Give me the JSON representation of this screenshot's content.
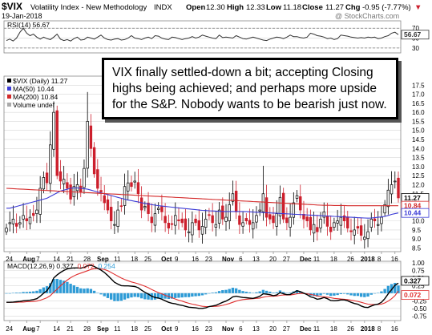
{
  "header": {
    "symbol": "$VIX",
    "name": "Volatility Index - New Methodology",
    "exchange": "INDX",
    "date": "19-Jan-2018",
    "watermark": "@ StockCharts.com",
    "ohlc": {
      "open_label": "Open",
      "open": "12.30",
      "high_label": "High",
      "high": "12.33",
      "low_label": "Low",
      "low": "11.18",
      "close_label": "Close",
      "close": "11.27",
      "chg_label": "Chg",
      "chg": "-0.95 (-7.77%)",
      "chg_arrow": "▼"
    }
  },
  "annotation": {
    "lines": [
      "VIX finally settled-down a bit; accepting Closing",
      "highs being achieved; and perhaps more upside",
      "for the S&P. Nobody wants to be bearish just now."
    ]
  },
  "colors": {
    "up": "#000000",
    "down": "#cc1f2c",
    "ma50": "#3b3bd6",
    "ma200": "#d42a2a",
    "rsi": "#333333",
    "macd": "#000000",
    "signal": "#e03030",
    "hist": "#2e9bd6",
    "grid": "#d8d8d8"
  },
  "legend": {
    "price": "$VIX (Daily) 11.27",
    "ma50": "MA(50) 10.44",
    "ma200": "MA(200) 10.84",
    "volume": "Volume undef"
  },
  "x_axis_labels": [
    "24",
    "Aug",
    "7",
    "14",
    "21",
    "28",
    "Sep",
    "11",
    "18",
    "25",
    "Oct",
    "9",
    "16",
    "23",
    "Nov",
    "6",
    "13",
    "20",
    "27",
    "Dec",
    "11",
    "18",
    "26",
    "2018",
    "8",
    "16"
  ],
  "chart_data": [
    {
      "type": "line",
      "panel": "RSI",
      "title": "RSI(14) 56.67",
      "yticks": [
        70,
        50,
        30
      ],
      "ylim": [
        20,
        85
      ],
      "overbought": 70,
      "oversold": 30,
      "last_value_label": "56.67",
      "values": [
        45,
        48,
        44,
        50,
        62,
        70,
        60,
        55,
        58,
        52,
        48,
        52,
        49,
        47,
        52,
        58,
        48,
        45,
        47,
        44,
        49,
        52,
        46,
        47,
        52,
        50,
        48,
        52,
        56,
        50,
        47,
        46,
        48,
        49,
        46,
        47,
        50,
        55,
        50,
        49,
        47,
        50,
        52,
        49,
        55,
        54,
        50,
        48,
        47,
        52,
        51,
        49,
        47,
        49,
        50,
        53,
        50,
        52,
        56,
        54,
        52,
        50,
        49,
        56,
        51,
        52,
        51,
        50,
        55,
        52,
        49,
        48,
        50,
        52,
        50,
        48,
        46,
        45,
        48,
        50,
        52,
        51,
        49,
        52,
        56,
        53,
        53,
        51,
        50,
        52,
        60,
        58,
        55,
        54,
        52,
        49,
        50,
        47,
        49,
        56,
        55,
        54,
        52,
        51,
        50,
        51,
        50,
        52,
        51,
        52,
        49,
        50,
        53,
        55,
        60,
        62,
        57
      ]
    },
    {
      "type": "candlestick",
      "panel": "Price",
      "title": "$VIX (Daily) 11.27",
      "yticks": [
        8.5,
        9.0,
        9.5,
        10.0,
        10.5,
        11.0,
        11.5,
        12.0,
        12.5,
        13.0,
        13.5,
        14.0,
        14.5,
        15.0,
        15.5,
        16.0,
        16.5,
        17.0,
        17.5
      ],
      "ylim": [
        8.3,
        18.0
      ],
      "last_labels": [
        {
          "text": "11.27",
          "value": 11.27,
          "color": "#000000"
        },
        {
          "text": "10.84",
          "value": 10.84,
          "color": "#d42a2a"
        },
        {
          "text": "10.44",
          "value": 10.44,
          "color": "#3b3bd6"
        }
      ],
      "close": [
        9.6,
        9.9,
        10.1,
        9.7,
        9.9,
        10.3,
        10.0,
        10.2,
        10.3,
        10.6,
        11.8,
        12.4,
        12.1,
        14.2,
        16.0,
        12.5,
        12.2,
        12.3,
        11.8,
        11.2,
        11.9,
        12.0,
        11.6,
        12.9,
        15.5,
        14.0,
        12.6,
        11.8,
        11.6,
        11.0,
        10.6,
        10.0,
        9.8,
        10.6,
        10.8,
        11.9,
        12.1,
        11.9,
        12.2,
        11.5,
        10.6,
        10.8,
        10.4,
        9.9,
        10.4,
        10.7,
        10.5,
        9.9,
        9.6,
        9.8,
        10.3,
        10.0,
        9.9,
        9.5,
        9.4,
        9.9,
        9.9,
        9.5,
        9.7,
        10.1,
        10.3,
        9.9,
        9.8,
        10.6,
        10.1,
        10.2,
        10.9,
        11.5,
        10.5,
        9.8,
        9.9,
        10.0,
        9.8,
        9.9,
        10.3,
        10.6,
        11.5,
        10.2,
        10.1,
        9.9,
        10.4,
        11.3,
        10.1,
        9.9,
        10.2,
        11.0,
        11.4,
        10.6,
        10.1,
        10.0,
        9.5,
        9.8,
        9.4,
        10.1,
        10.5,
        9.7,
        9.4,
        9.9,
        10.0,
        10.2,
        10.0,
        9.6,
        9.4,
        9.5,
        9.6,
        9.2,
        9.1,
        9.4,
        10.1,
        10.0,
        9.8,
        10.2,
        10.9,
        11.7,
        12.0,
        12.2,
        11.27
      ],
      "ma50": [
        10.7,
        10.7,
        10.75,
        10.8,
        10.85,
        10.9,
        10.95,
        11.0,
        11.05,
        11.1,
        11.15,
        11.2,
        11.25,
        11.35,
        11.45,
        11.55,
        11.65,
        11.7,
        11.75,
        11.8,
        11.82,
        11.82,
        11.8,
        11.78,
        11.75,
        11.7,
        11.65,
        11.6,
        11.55,
        11.5,
        11.45,
        11.4,
        11.35,
        11.3,
        11.25,
        11.2,
        11.15,
        11.12,
        11.08,
        11.05,
        11.0,
        10.97,
        10.93,
        10.9,
        10.87,
        10.84,
        10.82,
        10.8,
        10.78,
        10.76,
        10.74,
        10.72,
        10.7,
        10.68,
        10.66,
        10.64,
        10.62,
        10.6,
        10.58,
        10.57,
        10.56,
        10.55,
        10.54,
        10.53,
        10.52,
        10.52,
        10.52,
        10.52,
        10.52,
        10.52,
        10.52,
        10.51,
        10.5,
        10.49,
        10.48,
        10.47,
        10.46,
        10.45,
        10.44,
        10.43,
        10.42,
        10.41,
        10.4,
        10.39,
        10.38,
        10.37,
        10.36,
        10.35,
        10.34,
        10.33,
        10.32,
        10.31,
        10.3,
        10.29,
        10.28,
        10.27,
        10.26,
        10.25,
        10.24,
        10.23,
        10.22,
        10.21,
        10.2,
        10.19,
        10.18,
        10.17,
        10.16,
        10.15,
        10.16,
        10.18,
        10.2,
        10.22,
        10.25,
        10.3,
        10.36,
        10.4,
        10.44
      ],
      "ma200": [
        11.8,
        11.79,
        11.78,
        11.77,
        11.76,
        11.75,
        11.74,
        11.73,
        11.72,
        11.71,
        11.7,
        11.69,
        11.68,
        11.67,
        11.66,
        11.65,
        11.64,
        11.63,
        11.62,
        11.61,
        11.6,
        11.59,
        11.58,
        11.57,
        11.56,
        11.55,
        11.54,
        11.53,
        11.52,
        11.51,
        11.5,
        11.49,
        11.48,
        11.47,
        11.46,
        11.45,
        11.44,
        11.43,
        11.42,
        11.41,
        11.4,
        11.39,
        11.38,
        11.37,
        11.36,
        11.35,
        11.34,
        11.33,
        11.32,
        11.31,
        11.3,
        11.29,
        11.28,
        11.27,
        11.26,
        11.25,
        11.24,
        11.23,
        11.22,
        11.21,
        11.2,
        11.19,
        11.18,
        11.17,
        11.16,
        11.15,
        11.14,
        11.13,
        11.12,
        11.11,
        11.1,
        11.09,
        11.08,
        11.07,
        11.06,
        11.05,
        11.04,
        11.03,
        11.02,
        11.01,
        11.0,
        10.99,
        10.98,
        10.97,
        10.96,
        10.95,
        10.94,
        10.93,
        10.92,
        10.91,
        10.9,
        10.89,
        10.88,
        10.87,
        10.86,
        10.86,
        10.86,
        10.85,
        10.85,
        10.85,
        10.85,
        10.84,
        10.84,
        10.84,
        10.84,
        10.84,
        10.84,
        10.84,
        10.84,
        10.84,
        10.84,
        10.84,
        10.84,
        10.84,
        10.84,
        10.84,
        10.84
      ]
    },
    {
      "type": "line",
      "panel": "MACD",
      "title": "MACD(12,26,9)",
      "series": [
        {
          "name": "0.327",
          "color": "#000000"
        },
        {
          "name": "0.072",
          "color": "#e03030"
        },
        {
          "name": "0.254",
          "color": "#2e9bd6"
        }
      ],
      "yticks": [
        1.0,
        0.75,
        0.5,
        0.25,
        0.0,
        -0.25,
        -0.5,
        -0.75
      ],
      "ylim": [
        -0.9,
        1.05
      ],
      "last_labels": [
        {
          "text": "0.327",
          "value": 0.327,
          "color": "#000000"
        },
        {
          "text": "0.072",
          "value": 0.072,
          "color": "#e03030"
        }
      ],
      "macd": [
        -0.3,
        -0.3,
        -0.29,
        -0.28,
        -0.27,
        -0.25,
        -0.24,
        -0.23,
        -0.21,
        -0.18,
        -0.1,
        0.0,
        0.08,
        0.25,
        0.5,
        0.6,
        0.68,
        0.75,
        0.8,
        0.82,
        0.83,
        0.83,
        0.82,
        0.85,
        0.9,
        0.92,
        0.88,
        0.82,
        0.76,
        0.68,
        0.58,
        0.47,
        0.36,
        0.3,
        0.25,
        0.24,
        0.24,
        0.23,
        0.22,
        0.18,
        0.1,
        0.03,
        -0.03,
        -0.1,
        -0.14,
        -0.16,
        -0.2,
        -0.25,
        -0.3,
        -0.33,
        -0.35,
        -0.38,
        -0.4,
        -0.43,
        -0.46,
        -0.47,
        -0.48,
        -0.5,
        -0.5,
        -0.48,
        -0.44,
        -0.42,
        -0.4,
        -0.35,
        -0.3,
        -0.26,
        -0.2,
        -0.12,
        -0.1,
        -0.12,
        -0.14,
        -0.15,
        -0.16,
        -0.17,
        -0.14,
        -0.1,
        -0.02,
        -0.03,
        -0.05,
        -0.08,
        -0.06,
        0.02,
        -0.02,
        -0.05,
        -0.04,
        0.02,
        0.08,
        0.05,
        0.0,
        -0.05,
        -0.12,
        -0.15,
        -0.2,
        -0.18,
        -0.14,
        -0.18,
        -0.24,
        -0.25,
        -0.24,
        -0.22,
        -0.22,
        -0.25,
        -0.3,
        -0.34,
        -0.36,
        -0.42,
        -0.46,
        -0.47,
        -0.42,
        -0.38,
        -0.36,
        -0.3,
        -0.18,
        -0.02,
        0.12,
        0.26,
        0.327
      ],
      "signal": [
        -0.3,
        -0.3,
        -0.3,
        -0.3,
        -0.29,
        -0.29,
        -0.28,
        -0.28,
        -0.27,
        -0.26,
        -0.23,
        -0.19,
        -0.15,
        -0.08,
        0.03,
        0.13,
        0.24,
        0.34,
        0.43,
        0.51,
        0.57,
        0.62,
        0.66,
        0.7,
        0.74,
        0.78,
        0.8,
        0.81,
        0.8,
        0.78,
        0.74,
        0.68,
        0.62,
        0.56,
        0.5,
        0.45,
        0.41,
        0.37,
        0.34,
        0.31,
        0.27,
        0.23,
        0.18,
        0.12,
        0.07,
        0.02,
        -0.02,
        -0.07,
        -0.11,
        -0.15,
        -0.19,
        -0.23,
        -0.26,
        -0.3,
        -0.33,
        -0.36,
        -0.38,
        -0.41,
        -0.43,
        -0.44,
        -0.44,
        -0.44,
        -0.43,
        -0.42,
        -0.4,
        -0.37,
        -0.34,
        -0.3,
        -0.26,
        -0.23,
        -0.21,
        -0.2,
        -0.19,
        -0.18,
        -0.17,
        -0.16,
        -0.13,
        -0.11,
        -0.1,
        -0.1,
        -0.09,
        -0.07,
        -0.06,
        -0.06,
        -0.06,
        -0.04,
        -0.02,
        -0.01,
        -0.01,
        -0.02,
        -0.04,
        -0.06,
        -0.09,
        -0.11,
        -0.12,
        -0.13,
        -0.15,
        -0.17,
        -0.18,
        -0.19,
        -0.2,
        -0.21,
        -0.23,
        -0.25,
        -0.27,
        -0.3,
        -0.33,
        -0.36,
        -0.37,
        -0.37,
        -0.37,
        -0.36,
        -0.32,
        -0.26,
        -0.18,
        -0.08,
        0.072
      ]
    }
  ]
}
